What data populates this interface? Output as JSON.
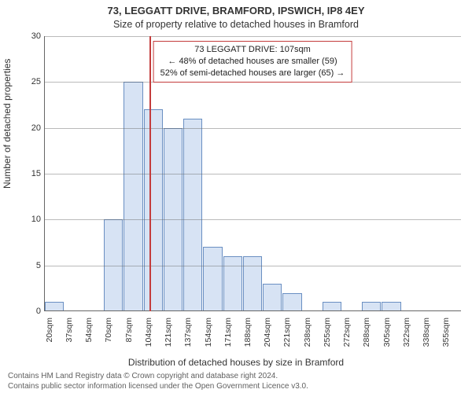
{
  "title_line1": "73, LEGGATT DRIVE, BRAMFORD, IPSWICH, IP8 4EY",
  "title_line2": "Size of property relative to detached houses in Bramford",
  "y_axis_label": "Number of detached properties",
  "x_axis_label": "Distribution of detached houses by size in Bramford",
  "footer_line1": "Contains HM Land Registry data © Crown copyright and database right 2024.",
  "footer_line2": "Contains public sector information licensed under the Open Government Licence v3.0.",
  "chart": {
    "type": "histogram",
    "y_max": 30,
    "y_ticks": [
      0,
      5,
      10,
      15,
      20,
      25,
      30
    ],
    "bar_fill": "#d7e3f4",
    "bar_stroke": "#6a8fc2",
    "grid_color": "#666666",
    "background": "#ffffff",
    "x_labels": [
      "20sqm",
      "37sqm",
      "54sqm",
      "70sqm",
      "87sqm",
      "104sqm",
      "121sqm",
      "137sqm",
      "154sqm",
      "171sqm",
      "188sqm",
      "204sqm",
      "221sqm",
      "238sqm",
      "255sqm",
      "272sqm",
      "288sqm",
      "305sqm",
      "322sqm",
      "338sqm",
      "355sqm"
    ],
    "values": [
      1,
      0,
      0,
      10,
      25,
      22,
      20,
      21,
      7,
      6,
      6,
      3,
      2,
      0,
      1,
      0,
      1,
      1,
      0,
      0,
      0
    ],
    "reference": {
      "position_index": 5.3,
      "line_color": "#c43c3c",
      "box_border": "#c43c3c",
      "box_bg": "#ffffff",
      "line1": "73 LEGGATT DRIVE: 107sqm",
      "line2": "← 48% of detached houses are smaller (59)",
      "line3": "52% of semi-detached houses are larger (65) →"
    }
  },
  "fonts": {
    "title_size_pt": 13,
    "subtitle_size_pt": 12.5,
    "axis_label_size_pt": 12,
    "tick_size_pt": 11,
    "annot_size_pt": 11,
    "footer_size_pt": 10
  }
}
